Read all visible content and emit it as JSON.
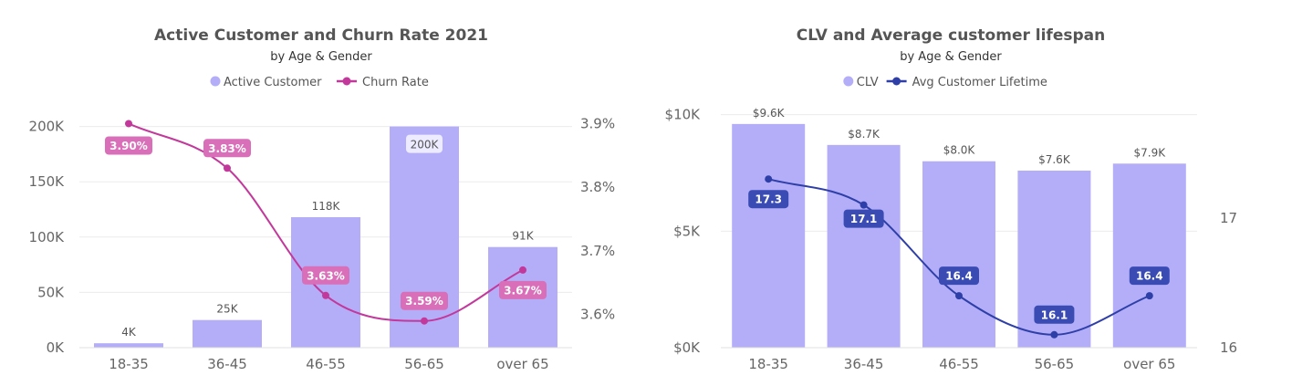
{
  "chart_data": [
    {
      "type": "bar",
      "title": "Active Customer and Churn Rate 2021",
      "subtitle": "by Age & Gender",
      "categories": [
        "18-35",
        "36-45",
        "46-55",
        "56-65",
        "over 65"
      ],
      "series": [
        {
          "name": "Active Customer",
          "kind": "bar",
          "axis": "left",
          "values": [
            4000,
            25000,
            118000,
            200000,
            91000
          ],
          "labels": [
            "4K",
            "25K",
            "118K",
            "200K",
            "91K"
          ],
          "color": "#b4aef8"
        },
        {
          "name": "Churn Rate",
          "kind": "line",
          "axis": "right",
          "values": [
            3.9,
            3.83,
            3.63,
            3.59,
            3.67
          ],
          "labels": [
            "3.90%",
            "3.83%",
            "3.63%",
            "3.59%",
            "3.67%"
          ],
          "color": "#c2399b"
        }
      ],
      "left_axis": {
        "ylim": [
          0,
          217000
        ],
        "ticks": [
          0,
          50000,
          100000,
          150000,
          200000
        ],
        "tick_labels": [
          "0K",
          "50K",
          "100K",
          "150K",
          "200K"
        ]
      },
      "right_axis": {
        "ylim": [
          3.548,
          3.925
        ],
        "ticks": [
          3.6,
          3.7,
          3.8,
          3.9
        ],
        "tick_labels": [
          "3.6%",
          "3.7%",
          "3.8%",
          "3.9%"
        ]
      },
      "legend_position": "top-center",
      "grid": true
    },
    {
      "type": "bar",
      "title": "CLV and Average customer lifespan",
      "subtitle": "by Age & Gender",
      "categories": [
        "18-35",
        "36-45",
        "46-55",
        "56-65",
        "over 65"
      ],
      "series": [
        {
          "name": "CLV",
          "kind": "bar",
          "axis": "left",
          "values": [
            9600,
            8700,
            8000,
            7600,
            7900
          ],
          "labels": [
            "$9.6K",
            "$8.7K",
            "$8.0K",
            "$7.6K",
            "$7.9K"
          ],
          "color": "#b4aef8"
        },
        {
          "name": "Avg Customer Lifetime",
          "kind": "line",
          "axis": "right",
          "values": [
            17.3,
            17.1,
            16.4,
            16.1,
            16.4
          ],
          "labels": [
            "17.3",
            "17.1",
            "16.4",
            "16.1",
            "16.4"
          ],
          "color": "#2e3fa8"
        }
      ],
      "left_axis": {
        "ylim": [
          0,
          10300
        ],
        "ticks": [
          0,
          5000,
          10000
        ],
        "tick_labels": [
          "$0K",
          "$5K",
          "$10K"
        ]
      },
      "right_axis": {
        "ylim": [
          16,
          17.85
        ],
        "ticks": [
          16,
          17
        ],
        "tick_labels": [
          "16",
          "17"
        ]
      },
      "legend_position": "top-center",
      "grid": true
    }
  ]
}
